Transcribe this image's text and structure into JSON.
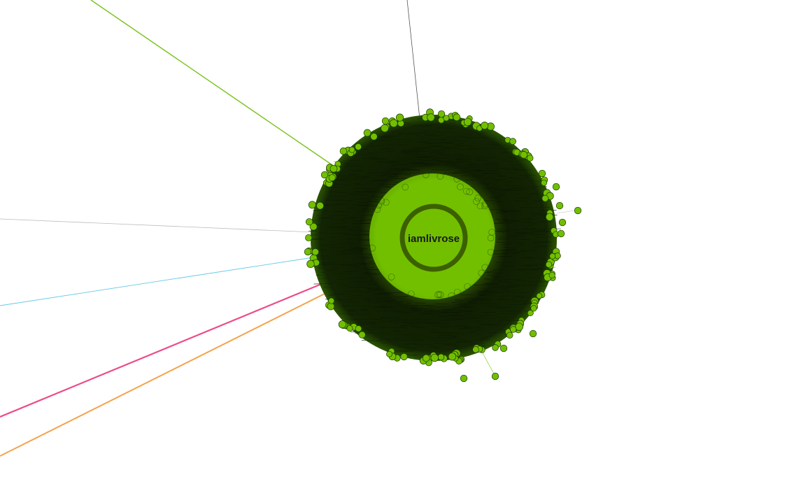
{
  "graph": {
    "hub": {
      "label": "iamlivrose"
    },
    "colors": {
      "node_fill": "#72bf00",
      "node_stroke": "#1c3a00",
      "dense_edges": "#0c1a02",
      "hub_ring": "#3c6000",
      "edge_green": "#78c21c",
      "edge_gray": "#bcbcbc",
      "edge_dark": "#555555",
      "edge_cyan": "#62c8e6",
      "edge_pink": "#ec4c8a",
      "edge_orange": "#f5a34c"
    }
  }
}
